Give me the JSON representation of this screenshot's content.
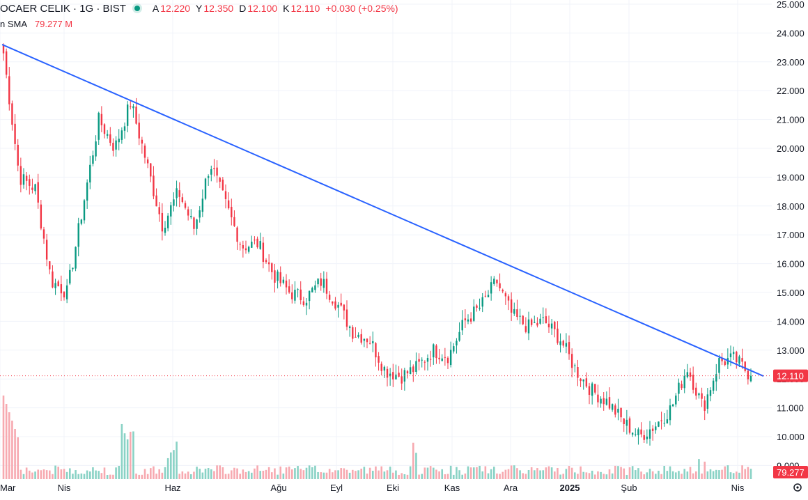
{
  "header": {
    "symbol": "OCAER CELIK · 1G · BIST",
    "open_label": "A",
    "open": "12.220",
    "high_label": "Y",
    "high": "12.350",
    "low_label": "D",
    "low": "12.100",
    "close_label": "K",
    "close": "12.110",
    "change": "+0.030 (+0.25%)",
    "volume_label": "n SMA",
    "volume_sma": "79.277 M"
  },
  "chart_data": {
    "type": "candlestick",
    "title": "OCAER CELIK · 1G · BIST",
    "y_axis_ticks": [
      "9.000",
      "10.000",
      "11.000",
      "12.000",
      "13.000",
      "14.000",
      "15.000",
      "16.000",
      "17.000",
      "18.000",
      "19.000",
      "20.000",
      "21.000",
      "22.000",
      "23.000",
      "24.000",
      "25.000"
    ],
    "ylim": [
      9.0,
      25.0
    ],
    "x_axis_labels": [
      "Mar",
      "Nis",
      "Haz",
      "Ağu",
      "Eyl",
      "Eki",
      "Kas",
      "Ara",
      "2025",
      "Şub",
      "Nis"
    ],
    "last_price": 12.11,
    "last_price_label": "12.110",
    "volume_sma_label": "79.277",
    "price_path": [
      {
        "date": "Mar",
        "close": 23.3
      },
      {
        "date": "Mar",
        "close": 19.0
      },
      {
        "date": "Mar",
        "close": 18.6
      },
      {
        "date": "Nis",
        "close": 15.4
      },
      {
        "date": "Nis",
        "close": 15.0
      },
      {
        "date": "Nis",
        "close": 18.0
      },
      {
        "date": "Nis",
        "close": 21.0
      },
      {
        "date": "May",
        "close": 20.0
      },
      {
        "date": "May",
        "close": 21.6
      },
      {
        "date": "May",
        "close": 19.5
      },
      {
        "date": "Haz",
        "close": 17.3
      },
      {
        "date": "Haz",
        "close": 18.5
      },
      {
        "date": "Haz",
        "close": 17.2
      },
      {
        "date": "Haz",
        "close": 19.5
      },
      {
        "date": "Tem",
        "close": 18.0
      },
      {
        "date": "Tem",
        "close": 16.6
      },
      {
        "date": "Tem",
        "close": 16.7
      },
      {
        "date": "Ağu",
        "close": 15.6
      },
      {
        "date": "Ağu",
        "close": 15.0
      },
      {
        "date": "Ağu",
        "close": 14.8
      },
      {
        "date": "Eyl",
        "close": 15.4
      },
      {
        "date": "Eyl",
        "close": 14.6
      },
      {
        "date": "Eyl",
        "close": 13.6
      },
      {
        "date": "Eki",
        "close": 13.4
      },
      {
        "date": "Eki",
        "close": 12.3
      },
      {
        "date": "Eki",
        "close": 12.1
      },
      {
        "date": "Kas",
        "close": 12.4
      },
      {
        "date": "Kas",
        "close": 13.0
      },
      {
        "date": "Kas",
        "close": 12.8
      },
      {
        "date": "Ara",
        "close": 14.0
      },
      {
        "date": "Ara",
        "close": 14.5
      },
      {
        "date": "Ara",
        "close": 15.4
      },
      {
        "date": "Ara",
        "close": 14.2
      },
      {
        "date": "Oca",
        "close": 13.8
      },
      {
        "date": "Oca",
        "close": 14.0
      },
      {
        "date": "Oca",
        "close": 13.4
      },
      {
        "date": "Şub",
        "close": 12.3
      },
      {
        "date": "Şub",
        "close": 11.6
      },
      {
        "date": "Şub",
        "close": 11.2
      },
      {
        "date": "Mar",
        "close": 10.5
      },
      {
        "date": "Mar",
        "close": 10.0
      },
      {
        "date": "Mar",
        "close": 10.4
      },
      {
        "date": "Mar",
        "close": 11.0
      },
      {
        "date": "Mar",
        "close": 12.4
      },
      {
        "date": "Mar",
        "close": 11.0
      },
      {
        "date": "Nis",
        "close": 12.6
      },
      {
        "date": "Nis",
        "close": 12.7
      },
      {
        "date": "Nis",
        "close": 12.11
      }
    ],
    "trendline": {
      "start": {
        "date": "Mar",
        "price": 23.6
      },
      "end": {
        "date": "Nis",
        "price": 12.1
      }
    },
    "colors": {
      "up": "#089981",
      "down": "#f23645",
      "up_volume": "#89d2c5",
      "down_volume": "#f7a9b0",
      "trendline": "#2962ff"
    }
  }
}
